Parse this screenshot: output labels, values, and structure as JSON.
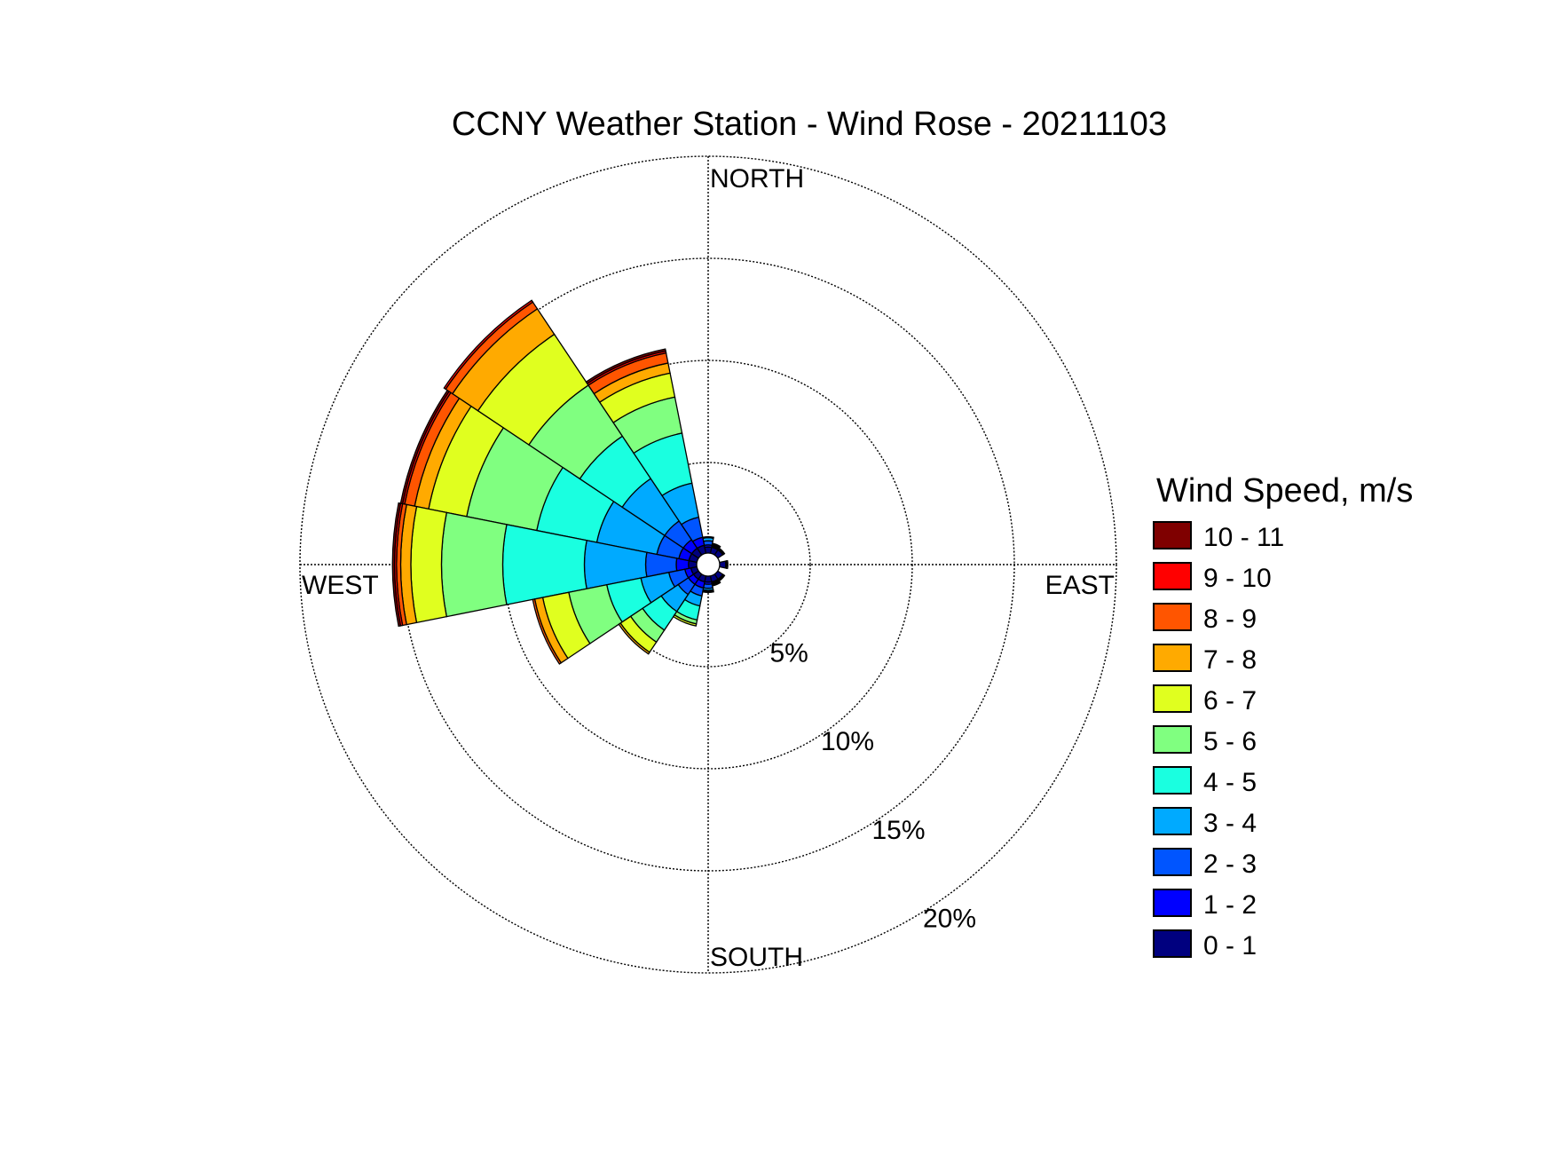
{
  "chart_data": {
    "type": "windrose",
    "title": "CCNY Weather Station - Wind Rose - 20211103",
    "directions": [
      "NORTH",
      "EAST",
      "SOUTH",
      "WEST"
    ],
    "rings": [
      5,
      10,
      15,
      20
    ],
    "ring_labels": [
      "5%",
      "10%",
      "15%",
      "20%"
    ],
    "rmax": 20,
    "legend_title": "Wind Speed, m/s",
    "bins": [
      {
        "label": "0 - 1",
        "color": "#00007f"
      },
      {
        "label": "1 - 2",
        "color": "#0000ff"
      },
      {
        "label": "2 - 3",
        "color": "#0055ff"
      },
      {
        "label": "3 - 4",
        "color": "#00aaff"
      },
      {
        "label": "4 - 5",
        "color": "#1affe0"
      },
      {
        "label": "5 - 6",
        "color": "#80ff80"
      },
      {
        "label": "6 - 7",
        "color": "#e0ff1f"
      },
      {
        "label": "7 - 8",
        "color": "#ffaa00"
      },
      {
        "label": "8 - 9",
        "color": "#ff5500"
      },
      {
        "label": "9 - 10",
        "color": "#ff0000"
      },
      {
        "label": "10 - 11",
        "color": "#7f0000"
      }
    ],
    "sectors": [
      {
        "direction_deg": 292.5,
        "cumulative_percent": [
          0.4,
          0.9,
          2.0,
          5.0,
          8.0,
          11.5,
          13.4,
          14.1,
          14.6,
          14.7,
          14.8
        ]
      },
      {
        "direction_deg": 315,
        "cumulative_percent": [
          0.4,
          0.9,
          2.0,
          4.5,
          7.0,
          10.0,
          13.0,
          14.5,
          14.9,
          15.0,
          15.0
        ]
      },
      {
        "direction_deg": 337.5,
        "cumulative_percent": [
          0.4,
          0.8,
          1.8,
          3.5,
          6.0,
          7.8,
          9.0,
          9.5,
          10.0,
          10.1,
          10.2
        ]
      },
      {
        "direction_deg": 270,
        "cumulative_percent": [
          0.4,
          1.0,
          2.5,
          5.5,
          9.5,
          12.5,
          14.0,
          14.5,
          14.7,
          14.8,
          14.9
        ]
      },
      {
        "direction_deg": 247.5,
        "cumulative_percent": [
          0.3,
          0.6,
          1.4,
          2.8,
          4.5,
          6.4,
          7.7,
          8.1,
          8.2,
          8.2,
          8.2
        ]
      },
      {
        "direction_deg": 225,
        "cumulative_percent": [
          0.3,
          0.6,
          1.2,
          2.2,
          3.3,
          4.0,
          4.6,
          4.7,
          4.7,
          4.7,
          4.7
        ]
      },
      {
        "direction_deg": 202.5,
        "cumulative_percent": [
          0.3,
          0.6,
          1.0,
          1.5,
          2.2,
          2.4,
          2.5,
          2.5,
          2.5,
          2.5,
          2.5
        ]
      },
      {
        "direction_deg": 180,
        "cumulative_percent": [
          0.3,
          0.4,
          0.6,
          0.7,
          0.75,
          0.8,
          0.8,
          0.8,
          0.8,
          0.8,
          0.8
        ]
      },
      {
        "direction_deg": 0,
        "cumulative_percent": [
          0.3,
          0.4,
          0.6,
          0.75,
          0.8,
          0.8,
          0.8,
          0.8,
          0.8,
          0.8,
          0.8
        ]
      },
      {
        "direction_deg": 22.5,
        "cumulative_percent": [
          0.3,
          0.35,
          0.4,
          0.45,
          0.5,
          0.5,
          0.5,
          0.5,
          0.5,
          0.5,
          0.5
        ]
      },
      {
        "direction_deg": 45,
        "cumulative_percent": [
          0.3,
          0.35,
          0.4,
          0.4,
          0.4,
          0.4,
          0.4,
          0.4,
          0.4,
          0.4,
          0.4
        ]
      },
      {
        "direction_deg": 90,
        "cumulative_percent": [
          0.3,
          0.35,
          0.4,
          0.4,
          0.4,
          0.4,
          0.4,
          0.4,
          0.4,
          0.4,
          0.4
        ]
      },
      {
        "direction_deg": 135,
        "cumulative_percent": [
          0.3,
          0.35,
          0.4,
          0.4,
          0.4,
          0.4,
          0.4,
          0.4,
          0.4,
          0.4,
          0.4
        ]
      },
      {
        "direction_deg": 157.5,
        "cumulative_percent": [
          0.3,
          0.35,
          0.4,
          0.45,
          0.5,
          0.5,
          0.5,
          0.5,
          0.5,
          0.5,
          0.5
        ]
      }
    ]
  }
}
